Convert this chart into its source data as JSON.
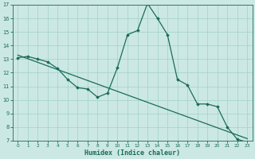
{
  "xlabel": "Humidex (Indice chaleur)",
  "line_color": "#1a6b5a",
  "bg_color": "#cce8e4",
  "grid_color": "#a8d4cf",
  "line_data": [
    [
      0,
      13.1
    ],
    [
      1,
      13.2
    ],
    [
      2,
      13.0
    ],
    [
      3,
      12.8
    ],
    [
      4,
      12.3
    ],
    [
      5,
      11.5
    ],
    [
      6,
      10.9
    ],
    [
      7,
      10.8
    ],
    [
      8,
      10.2
    ],
    [
      9,
      10.5
    ],
    [
      10,
      12.4
    ],
    [
      11,
      14.8
    ],
    [
      12,
      15.1
    ],
    [
      13,
      17.1
    ],
    [
      14,
      16.0
    ],
    [
      15,
      14.8
    ],
    [
      16,
      11.5
    ],
    [
      17,
      11.1
    ],
    [
      18,
      9.7
    ],
    [
      19,
      9.7
    ],
    [
      20,
      9.5
    ],
    [
      21,
      8.0
    ],
    [
      22,
      7.1
    ],
    [
      23,
      6.9
    ]
  ],
  "trend_data": [
    [
      0,
      13.3
    ],
    [
      23,
      7.15
    ]
  ],
  "xlim": [
    -0.5,
    23.5
  ],
  "ylim": [
    7,
    17
  ],
  "yticks": [
    7,
    8,
    9,
    10,
    11,
    12,
    13,
    14,
    15,
    16,
    17
  ],
  "xticks": [
    0,
    1,
    2,
    3,
    4,
    5,
    6,
    7,
    8,
    9,
    10,
    11,
    12,
    13,
    14,
    15,
    16,
    17,
    18,
    19,
    20,
    21,
    22,
    23
  ]
}
